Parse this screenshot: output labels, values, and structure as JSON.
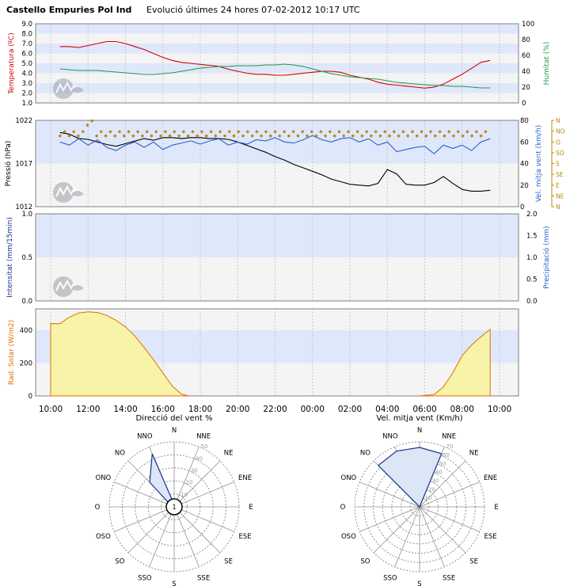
{
  "header": {
    "station": "Castello Empuries Pol Ind",
    "subtitle": "Evolució últimes 24 hores 07-02-2012 10:17 UTC"
  },
  "colors": {
    "band": "#dfe7fb",
    "plot_bg": "#f4f4f4",
    "grid": "#c8c8c8",
    "temperature": "#d40000",
    "humidity": "#1f9a4a",
    "pressure": "#000000",
    "wind_speed": "#2a62c8",
    "wind_dir": "#b8860b",
    "solar_fill": "#f7f3a8",
    "solar_line": "#e07000",
    "rose_fill": "#dbe6f7",
    "rose_line": "#1b2f8a",
    "label_blue": "#1b2f8a",
    "label_orange": "#e07000"
  },
  "x_axis_ticks": [
    "10:00",
    "12:00",
    "14:00",
    "16:00",
    "18:00",
    "20:00",
    "22:00",
    "00:00",
    "02:00",
    "04:00",
    "06:00",
    "08:00",
    "10:00"
  ],
  "chart_data": [
    {
      "type": "line",
      "id": "temperature-humidity",
      "x_hours": [
        0.5,
        1,
        1.5,
        2,
        2.5,
        3,
        3.5,
        4,
        4.5,
        5,
        5.5,
        6,
        6.5,
        7,
        7.5,
        8,
        8.5,
        9,
        9.5,
        10,
        10.5,
        11,
        11.5,
        12,
        12.5,
        13,
        13.5,
        14,
        14.5,
        15,
        15.5,
        16,
        16.5,
        17,
        17.5,
        18,
        18.5,
        19,
        19.5,
        20,
        20.5,
        21,
        21.5,
        22,
        22.5,
        23,
        23.5
      ],
      "left_axis": {
        "label": "Temperatura (ºC)",
        "ticks": [
          "1.0",
          "2.0",
          "3.0",
          "4.0",
          "5.0",
          "6.0",
          "7.0",
          "8.0",
          "9.0"
        ],
        "range": [
          1,
          9
        ]
      },
      "right_axis": {
        "label": "Humitat (%)",
        "ticks": [
          "0",
          "20",
          "40",
          "60",
          "80",
          "100"
        ],
        "range": [
          0,
          100
        ]
      },
      "series": [
        {
          "name": "Temperatura",
          "axis": "left",
          "color": "#d40000",
          "values": [
            6.7,
            6.7,
            6.6,
            6.8,
            7.0,
            7.2,
            7.2,
            7.0,
            6.7,
            6.4,
            6.0,
            5.6,
            5.3,
            5.1,
            5.0,
            4.9,
            4.8,
            4.7,
            4.4,
            4.2,
            4.0,
            3.9,
            3.9,
            3.8,
            3.8,
            3.9,
            4.0,
            4.1,
            4.2,
            4.2,
            4.1,
            3.8,
            3.6,
            3.4,
            3.1,
            2.9,
            2.8,
            2.7,
            2.6,
            2.5,
            2.6,
            2.9,
            3.4,
            3.9,
            4.5,
            5.1,
            5.3
          ]
        },
        {
          "name": "Humitat",
          "axis": "right",
          "color": "#1f9a4a",
          "values": [
            43,
            42,
            41,
            41,
            41,
            40,
            39,
            38,
            37,
            36,
            36,
            37,
            38,
            40,
            42,
            44,
            45,
            46,
            46,
            47,
            47,
            47,
            48,
            48,
            49,
            48,
            46,
            43,
            40,
            37,
            35,
            33,
            32,
            31,
            30,
            28,
            26,
            25,
            24,
            23,
            22,
            22,
            21,
            21,
            20,
            19,
            19
          ]
        }
      ]
    },
    {
      "type": "line",
      "id": "pressure-wind",
      "x_hours": [
        0.5,
        1,
        1.5,
        2,
        2.5,
        3,
        3.5,
        4,
        4.5,
        5,
        5.5,
        6,
        6.5,
        7,
        7.5,
        8,
        8.5,
        9,
        9.5,
        10,
        10.5,
        11,
        11.5,
        12,
        12.5,
        13,
        13.5,
        14,
        14.5,
        15,
        15.5,
        16,
        16.5,
        17,
        17.5,
        18,
        18.5,
        19,
        19.5,
        20,
        20.5,
        21,
        21.5,
        22,
        22.5,
        23,
        23.5
      ],
      "left_axis": {
        "label": "Pressió (hPa)",
        "ticks": [
          "1012",
          "1017",
          "1022"
        ],
        "range": [
          1012,
          1022
        ]
      },
      "right_axis": {
        "label": "Vel. mitja vent (km/h)",
        "ticks": [
          "0",
          "20",
          "40",
          "60",
          "80"
        ],
        "range": [
          0,
          80
        ]
      },
      "direction_axis": {
        "ticks": [
          "N",
          "NO",
          "O",
          "SO",
          "S",
          "SE",
          "E",
          "NE",
          "N"
        ]
      },
      "series": [
        {
          "name": "Pressió",
          "axis": "left",
          "color": "#000000",
          "values": [
            1020.6,
            1020.4,
            1019.9,
            1019.8,
            1019.5,
            1019.2,
            1019.0,
            1019.3,
            1019.6,
            1019.9,
            1019.7,
            1020.0,
            1020.0,
            1019.9,
            1020.0,
            1020.0,
            1019.9,
            1019.9,
            1019.8,
            1019.5,
            1019.1,
            1018.7,
            1018.3,
            1017.8,
            1017.4,
            1016.9,
            1016.5,
            1016.1,
            1015.7,
            1015.2,
            1014.9,
            1014.6,
            1014.5,
            1014.4,
            1014.7,
            1016.3,
            1015.8,
            1014.6,
            1014.5,
            1014.5,
            1014.8,
            1015.5,
            1014.7,
            1014.0,
            1013.8,
            1013.8,
            1013.9
          ]
        },
        {
          "name": "Vel. mitja vent",
          "axis": "right",
          "color": "#2a62c8",
          "values": [
            60,
            57,
            63,
            57,
            62,
            55,
            52,
            57,
            60,
            55,
            60,
            53,
            57,
            59,
            61,
            58,
            61,
            63,
            57,
            60,
            58,
            62,
            61,
            64,
            60,
            59,
            62,
            66,
            62,
            60,
            63,
            64,
            60,
            63,
            57,
            60,
            51,
            53,
            55,
            56,
            49,
            57,
            54,
            57,
            52,
            60,
            63
          ]
        },
        {
          "name": "Direcció vent",
          "axis": "direction",
          "color": "#b8860b",
          "values": [
            "NO",
            "NO",
            "NO",
            "NNO",
            "NO",
            "NO",
            "NO",
            "NO",
            "NO",
            "NO",
            "NO",
            "NO",
            "NO",
            "NO",
            "NO",
            "NO",
            "NO",
            "NO",
            "NO",
            "NO",
            "NO",
            "NO",
            "NO",
            "NO",
            "NO",
            "NO",
            "NO",
            "NO",
            "NO",
            "NO",
            "NO",
            "NO",
            "NO",
            "NO",
            "NO",
            "NO",
            "NO",
            "NO",
            "NO",
            "NO",
            "NO",
            "NO",
            "NO",
            "NO",
            "NO",
            "NO",
            "NO"
          ]
        }
      ]
    },
    {
      "type": "area",
      "id": "precipitation",
      "left_axis": {
        "label": "Intensitat (mm/15min)",
        "ticks": [
          "0.0",
          "0.5",
          "1.0"
        ],
        "range": [
          0,
          1
        ]
      },
      "right_axis": {
        "label": "Precipitació (mm)",
        "ticks": [
          "0.0",
          "0.5",
          "1.0",
          "1.5",
          "2.0"
        ],
        "range": [
          0,
          2
        ]
      },
      "series": []
    },
    {
      "type": "area",
      "id": "solar-radiation",
      "x_hours": [
        0.5,
        1,
        1.5,
        2,
        2.5,
        3,
        3.5,
        4,
        4.5,
        5,
        5.5,
        6,
        6.5,
        7,
        20.5,
        21,
        21.5,
        22,
        22.5,
        23,
        23.5
      ],
      "left_axis": {
        "label": "Rad. Solar (W/m2)",
        "ticks": [
          "0",
          "200",
          "400"
        ],
        "range": [
          0,
          530
        ]
      },
      "series": [
        {
          "name": "Rad. Solar",
          "color": "#e07000",
          "values": [
            440,
            480,
            505,
            512,
            508,
            490,
            460,
            420,
            365,
            295,
            220,
            140,
            60,
            10,
            8,
            55,
            140,
            245,
            310,
            360,
            405
          ]
        }
      ]
    },
    {
      "type": "polar",
      "id": "wind-direction-rose",
      "title": "Direcció del vent %",
      "directions": [
        "N",
        "NNE",
        "NE",
        "ENE",
        "E",
        "ESE",
        "SE",
        "SSE",
        "S",
        "SSO",
        "SO",
        "OSO",
        "O",
        "ONO",
        "NO",
        "NNO"
      ],
      "rings": [
        "10",
        "20",
        "30",
        "40",
        "50"
      ],
      "calm_label": "1",
      "values": [
        2,
        1,
        1,
        1,
        1,
        1,
        1,
        1,
        1,
        1,
        1,
        1,
        1,
        3,
        32,
        53
      ]
    },
    {
      "type": "polar",
      "id": "wind-speed-rose",
      "title": "Vel. mitja vent (Km/h)",
      "directions": [
        "N",
        "NNE",
        "NE",
        "ENE",
        "E",
        "ESE",
        "SE",
        "SSE",
        "S",
        "SSO",
        "SO",
        "OSO",
        "O",
        "ONO",
        "NO",
        "NNO"
      ],
      "rings": [
        "10",
        "20",
        "30",
        "40",
        "50",
        "60",
        "70"
      ],
      "values": [
        64,
        62,
        0,
        0,
        0,
        0,
        0,
        0,
        0,
        0,
        0,
        0,
        0,
        0,
        63,
        65
      ]
    }
  ]
}
